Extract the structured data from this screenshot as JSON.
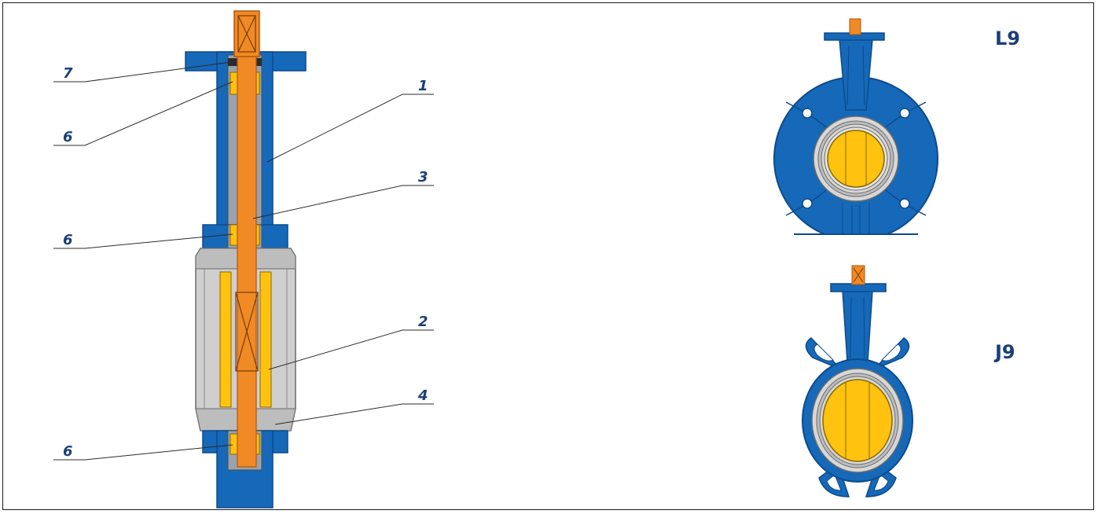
{
  "callouts": {
    "c7": "7",
    "c6a": "6",
    "c1": "1",
    "c3": "3",
    "c6b": "6",
    "c2": "2",
    "c4": "4",
    "c6c": "6"
  },
  "models": {
    "top": "L9",
    "bottom": "J9"
  },
  "colors": {
    "body": "#1569b8",
    "body_dark": "#0d4a8c",
    "stem": "#f08a24",
    "stem_dark": "#b5540d",
    "yellow": "#ffc20e",
    "grey": "#cfcfcf",
    "grey_dark": "#8a8a8a",
    "text": "#1b3f7a"
  }
}
